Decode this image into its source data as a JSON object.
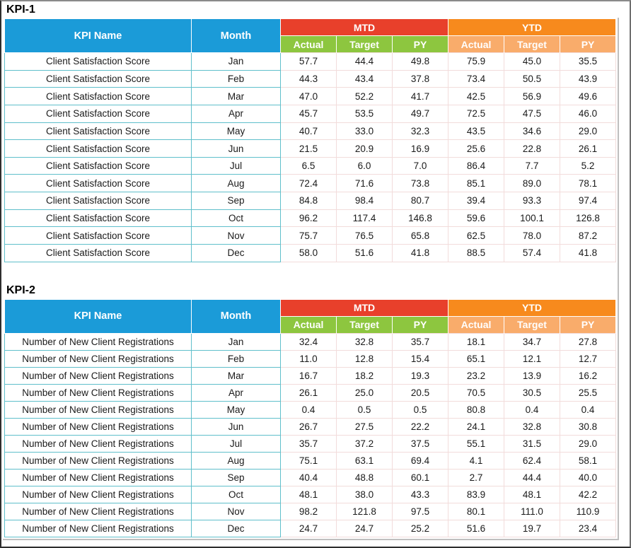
{
  "colors": {
    "header_blue": "#1B9BD8",
    "mtd_red": "#E8402B",
    "mtd_sub_green": "#8DC63F",
    "ytd_orange": "#F78A1D",
    "ytd_sub_light_orange": "#F9AC6B",
    "teal_border": "#5FBFCB",
    "pink_border": "#F2DCDB",
    "header_text": "#FFFFFF",
    "body_text": "#1A1A1A",
    "boundary_gray": "#BFBFBF"
  },
  "tables": [
    {
      "title": "KPI-1",
      "kpi_name_header": "KPI Name",
      "month_header": "Month",
      "groups": [
        {
          "label": "MTD",
          "sub": [
            "Actual",
            "Target",
            "PY"
          ]
        },
        {
          "label": "YTD",
          "sub": [
            "Actual",
            "Target",
            "PY"
          ]
        }
      ],
      "rows": [
        {
          "kpi": "Client Satisfaction Score",
          "month": "Jan",
          "mtd": [
            "57.7",
            "44.4",
            "49.8"
          ],
          "ytd": [
            "75.9",
            "45.0",
            "35.5"
          ]
        },
        {
          "kpi": "Client Satisfaction Score",
          "month": "Feb",
          "mtd": [
            "44.3",
            "43.4",
            "37.8"
          ],
          "ytd": [
            "73.4",
            "50.5",
            "43.9"
          ]
        },
        {
          "kpi": "Client Satisfaction Score",
          "month": "Mar",
          "mtd": [
            "47.0",
            "52.2",
            "41.7"
          ],
          "ytd": [
            "42.5",
            "56.9",
            "49.6"
          ]
        },
        {
          "kpi": "Client Satisfaction Score",
          "month": "Apr",
          "mtd": [
            "45.7",
            "53.5",
            "49.7"
          ],
          "ytd": [
            "72.5",
            "47.5",
            "46.0"
          ]
        },
        {
          "kpi": "Client Satisfaction Score",
          "month": "May",
          "mtd": [
            "40.7",
            "33.0",
            "32.3"
          ],
          "ytd": [
            "43.5",
            "34.6",
            "29.0"
          ]
        },
        {
          "kpi": "Client Satisfaction Score",
          "month": "Jun",
          "mtd": [
            "21.5",
            "20.9",
            "16.9"
          ],
          "ytd": [
            "25.6",
            "22.8",
            "26.1"
          ]
        },
        {
          "kpi": "Client Satisfaction Score",
          "month": "Jul",
          "mtd": [
            "6.5",
            "6.0",
            "7.0"
          ],
          "ytd": [
            "86.4",
            "7.7",
            "5.2"
          ]
        },
        {
          "kpi": "Client Satisfaction Score",
          "month": "Aug",
          "mtd": [
            "72.4",
            "71.6",
            "73.8"
          ],
          "ytd": [
            "85.1",
            "89.0",
            "78.1"
          ]
        },
        {
          "kpi": "Client Satisfaction Score",
          "month": "Sep",
          "mtd": [
            "84.8",
            "98.4",
            "80.7"
          ],
          "ytd": [
            "39.4",
            "93.3",
            "97.4"
          ]
        },
        {
          "kpi": "Client Satisfaction Score",
          "month": "Oct",
          "mtd": [
            "96.2",
            "117.4",
            "146.8"
          ],
          "ytd": [
            "59.6",
            "100.1",
            "126.8"
          ]
        },
        {
          "kpi": "Client Satisfaction Score",
          "month": "Nov",
          "mtd": [
            "75.7",
            "76.5",
            "65.8"
          ],
          "ytd": [
            "62.5",
            "78.0",
            "87.2"
          ]
        },
        {
          "kpi": "Client Satisfaction Score",
          "month": "Dec",
          "mtd": [
            "58.0",
            "51.6",
            "41.8"
          ],
          "ytd": [
            "88.5",
            "57.4",
            "41.8"
          ]
        }
      ]
    },
    {
      "title": "KPI-2",
      "kpi_name_header": "KPI Name",
      "month_header": "Month",
      "groups": [
        {
          "label": "MTD",
          "sub": [
            "Actual",
            "Target",
            "PY"
          ]
        },
        {
          "label": "YTD",
          "sub": [
            "Actual",
            "Target",
            "PY"
          ]
        }
      ],
      "rows": [
        {
          "kpi": "Number of New Client Registrations",
          "month": "Jan",
          "mtd": [
            "32.4",
            "32.8",
            "35.7"
          ],
          "ytd": [
            "18.1",
            "34.7",
            "27.8"
          ]
        },
        {
          "kpi": "Number of New Client Registrations",
          "month": "Feb",
          "mtd": [
            "11.0",
            "12.8",
            "15.4"
          ],
          "ytd": [
            "65.1",
            "12.1",
            "12.7"
          ]
        },
        {
          "kpi": "Number of New Client Registrations",
          "month": "Mar",
          "mtd": [
            "16.7",
            "18.2",
            "19.3"
          ],
          "ytd": [
            "23.2",
            "13.9",
            "16.2"
          ]
        },
        {
          "kpi": "Number of New Client Registrations",
          "month": "Apr",
          "mtd": [
            "26.1",
            "25.0",
            "20.5"
          ],
          "ytd": [
            "70.5",
            "30.5",
            "25.5"
          ]
        },
        {
          "kpi": "Number of New Client Registrations",
          "month": "May",
          "mtd": [
            "0.4",
            "0.5",
            "0.5"
          ],
          "ytd": [
            "80.8",
            "0.4",
            "0.4"
          ]
        },
        {
          "kpi": "Number of New Client Registrations",
          "month": "Jun",
          "mtd": [
            "26.7",
            "27.5",
            "22.2"
          ],
          "ytd": [
            "24.1",
            "32.8",
            "30.8"
          ]
        },
        {
          "kpi": "Number of New Client Registrations",
          "month": "Jul",
          "mtd": [
            "35.7",
            "37.2",
            "37.5"
          ],
          "ytd": [
            "55.1",
            "31.5",
            "29.0"
          ]
        },
        {
          "kpi": "Number of New Client Registrations",
          "month": "Aug",
          "mtd": [
            "75.1",
            "63.1",
            "69.4"
          ],
          "ytd": [
            "4.1",
            "62.4",
            "58.1"
          ]
        },
        {
          "kpi": "Number of New Client Registrations",
          "month": "Sep",
          "mtd": [
            "40.4",
            "48.8",
            "60.1"
          ],
          "ytd": [
            "2.7",
            "44.4",
            "40.0"
          ]
        },
        {
          "kpi": "Number of New Client Registrations",
          "month": "Oct",
          "mtd": [
            "48.1",
            "38.0",
            "43.3"
          ],
          "ytd": [
            "83.9",
            "48.1",
            "42.2"
          ]
        },
        {
          "kpi": "Number of New Client Registrations",
          "month": "Nov",
          "mtd": [
            "98.2",
            "121.8",
            "97.5"
          ],
          "ytd": [
            "80.1",
            "111.0",
            "110.9"
          ]
        },
        {
          "kpi": "Number of New Client Registrations",
          "month": "Dec",
          "mtd": [
            "24.7",
            "24.7",
            "25.2"
          ],
          "ytd": [
            "51.6",
            "19.7",
            "23.4"
          ]
        }
      ]
    }
  ]
}
